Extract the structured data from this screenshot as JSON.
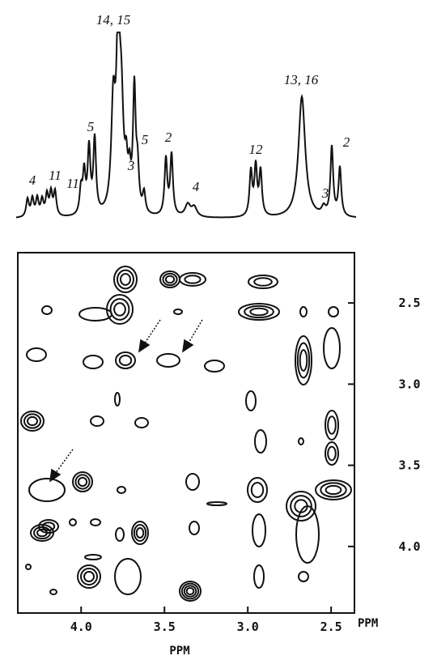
{
  "chart_data": {
    "type": "contour",
    "annotations": [
      "4",
      "11",
      "11",
      "5",
      "14, 15",
      "3",
      "5",
      "2",
      "4",
      "12",
      "13, 16",
      "3",
      "2"
    ],
    "xlabel": "PPM",
    "ylabel": "PPM",
    "xlim": [
      4.38,
      2.36
    ],
    "xticks": [
      {
        "value": 4.0,
        "label": "4.0"
      },
      3.5,
      {
        "value": 3.0,
        "label": "3.0"
      },
      2.5
    ],
    "ylim": [
      2.19,
      4.41
    ],
    "yticks": [
      2.5,
      {
        "value": 3.0,
        "label": "3.0"
      },
      3.5,
      {
        "value": 4.0,
        "label": "4.0"
      }
    ]
  }
}
